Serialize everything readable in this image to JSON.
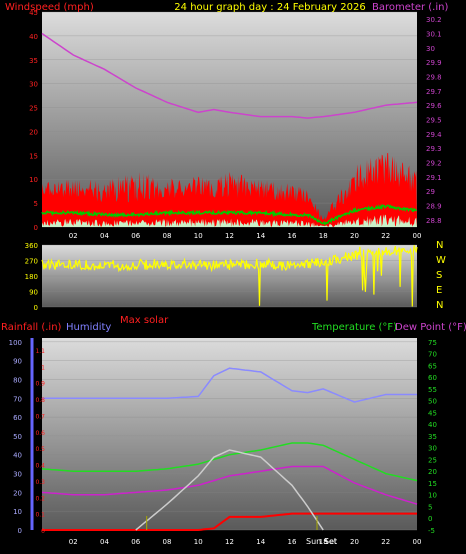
{
  "header": {
    "left_label": "Windspeed (mph)",
    "center_label": "24 hour graph day : 24 February 2026",
    "right_label": "Barometer (.in)"
  },
  "colors": {
    "background": "#000000",
    "panel_top": "#dcdcdc",
    "panel_bottom": "#5a5a5a",
    "windspeed": "#ff0000",
    "wind_avg": "#00cc00",
    "wind_light": "#c8f0c8",
    "barometer": "#cc44cc",
    "direction": "#ffff00",
    "humidity": "#8a8aff",
    "temperature": "#22dd22",
    "dewpoint": "#cc22cc",
    "rainfall": "#ff0000",
    "solar": "#cccccc",
    "label_red": "#ff2020",
    "label_yellow": "#ffff00",
    "label_magenta": "#cc44cc",
    "label_blue": "#8080ff",
    "label_green": "#22dd22",
    "tick_blue": "#6666ff"
  },
  "x_ticks": [
    "02",
    "04",
    "06",
    "08",
    "10",
    "12",
    "14",
    "16",
    "18",
    "20",
    "22",
    "00"
  ],
  "wind_panel": {
    "left_ticks": [
      "45",
      "40",
      "35",
      "30",
      "25",
      "20",
      "15",
      "10",
      "5",
      "0"
    ],
    "right_ticks": [
      "30.2",
      "30.1",
      "30",
      "29.9",
      "29.8",
      "29.7",
      "29.6",
      "29.5",
      "29.4",
      "29.3",
      "29.2",
      "29.1",
      "29",
      "28.9",
      "28.8"
    ]
  },
  "direction_panel": {
    "left_ticks": [
      "360",
      "270",
      "180",
      "90",
      "0"
    ],
    "compass": [
      "N",
      "W",
      "S",
      "E",
      "N"
    ]
  },
  "bottom_panel": {
    "left_labels": {
      "rainfall": "Rainfall (.in)",
      "humidity": "Humidity"
    },
    "max_solar": "Max solar",
    "right_labels": {
      "temperature": "Temperature (°F)",
      "dewpoint": "Dew Point (°F)"
    },
    "humidity_ticks": [
      "100",
      "90",
      "80",
      "70",
      "60",
      "50",
      "40",
      "30",
      "20",
      "10",
      "0"
    ],
    "rain_ticks": [
      "1.1",
      "1",
      "0.9",
      "0.8",
      "0.7",
      "0.6",
      "0.5",
      "0.4",
      "0.3",
      "0.2",
      "0.1",
      "0"
    ],
    "temp_ticks": [
      "75",
      "70",
      "65",
      "60",
      "55",
      "50",
      "45",
      "40",
      "35",
      "30",
      "25",
      "20",
      "15",
      "10",
      "5",
      "0",
      "-5"
    ],
    "sun_rise_label": "Sun Set",
    "sun_set_label": "Set"
  },
  "chart_data": [
    {
      "type": "line",
      "x_axis": "hour",
      "x": [
        0,
        2,
        4,
        6,
        8,
        10,
        11,
        12,
        14,
        16,
        17,
        18,
        20,
        22,
        24
      ],
      "series": [
        {
          "name": "Windspeed (mph)",
          "axis": "left",
          "ylim": [
            0,
            45
          ],
          "values": [
            6,
            6,
            5,
            5,
            6,
            6,
            6,
            6,
            6,
            5,
            5,
            1,
            7,
            9,
            7
          ],
          "max_gust": [
            10,
            10,
            10,
            12,
            10,
            11,
            10,
            12,
            10,
            9,
            8,
            2,
            13,
            16,
            12
          ]
        },
        {
          "name": "Barometer (.in)",
          "axis": "right",
          "ylim": [
            28.75,
            30.25
          ],
          "values": [
            30.1,
            29.95,
            29.85,
            29.72,
            29.62,
            29.55,
            29.57,
            29.55,
            29.52,
            29.52,
            29.51,
            29.52,
            29.55,
            29.6,
            29.62
          ]
        }
      ]
    },
    {
      "type": "scatter",
      "title": "Wind direction",
      "ylim": [
        0,
        360
      ],
      "x": [
        0,
        2,
        4,
        6,
        8,
        10,
        12,
        14,
        16,
        18,
        20,
        22,
        24
      ],
      "values": [
        245,
        250,
        240,
        245,
        250,
        240,
        245,
        250,
        235,
        260,
        300,
        320,
        330
      ]
    },
    {
      "type": "line",
      "x": [
        0,
        2,
        4,
        6,
        8,
        10,
        11,
        12,
        14,
        16,
        17,
        18,
        20,
        22,
        24
      ],
      "series": [
        {
          "name": "Humidity",
          "axis": "humidity",
          "ylim": [
            0,
            100
          ],
          "values": [
            70,
            70,
            70,
            70,
            70,
            71,
            82,
            86,
            84,
            74,
            73,
            75,
            68,
            72,
            72
          ]
        },
        {
          "name": "Temperature (°F)",
          "axis": "temp",
          "ylim": [
            -5,
            75
          ],
          "values": [
            21,
            20,
            20,
            20,
            21,
            23,
            25,
            27,
            29,
            32,
            32,
            31,
            25,
            19,
            16
          ]
        },
        {
          "name": "Dew Point (°F)",
          "axis": "temp",
          "ylim": [
            -5,
            75
          ],
          "values": [
            11,
            10,
            10,
            11,
            12,
            14,
            16,
            18,
            20,
            22,
            22,
            22,
            15,
            10,
            6
          ]
        },
        {
          "name": "Rainfall (.in)",
          "axis": "rain",
          "ylim": [
            0,
            1.15
          ],
          "values": [
            0,
            0,
            0,
            0,
            0,
            0,
            0.01,
            0.08,
            0.08,
            0.1,
            0.1,
            0.1,
            0.1,
            0.1,
            0.1
          ]
        },
        {
          "name": "Max solar",
          "axis": "temp",
          "ylim": [
            -5,
            75
          ],
          "values": [
            null,
            null,
            null,
            -5,
            6,
            18,
            26,
            29,
            26,
            14,
            5,
            -5,
            null,
            null,
            null
          ]
        }
      ]
    }
  ]
}
